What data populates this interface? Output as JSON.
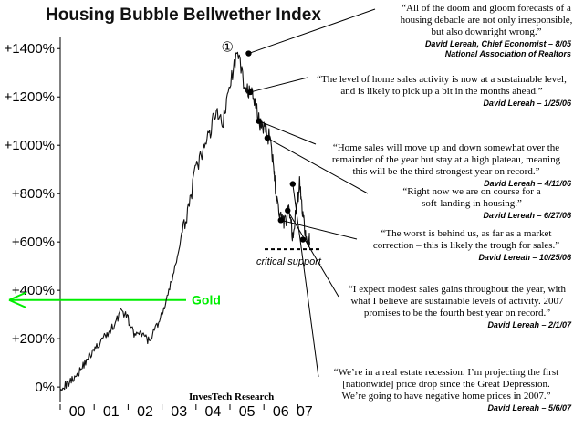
{
  "chart_data": {
    "type": "line",
    "title": "Housing Bubble Bellwether Index",
    "yunit_suffix": "%",
    "ylim": [
      -60,
      1450
    ],
    "yticks": [
      0,
      200,
      400,
      600,
      800,
      1000,
      1200,
      1400
    ],
    "ytick_labels": [
      "0%",
      "+200%",
      "+400%",
      "+600%",
      "+800%",
      "+1000%",
      "+1200%",
      "+1400%"
    ],
    "xlim": [
      2000.0,
      2007.5
    ],
    "xticks": [
      2000.5,
      2001.5,
      2002.5,
      2003.5,
      2004.5,
      2005.5,
      2006.5,
      2007.2
    ],
    "xtick_labels": [
      "00",
      "01",
      "02",
      "03",
      "04",
      "05",
      "06",
      "07"
    ],
    "series": [
      {
        "x": [
          2000.0,
          2000.2,
          2000.4,
          2000.6,
          2000.8,
          2001.0,
          2001.2,
          2001.4,
          2001.6,
          2001.8,
          2002.0,
          2002.2,
          2002.4,
          2002.6,
          2002.8,
          2003.0,
          2003.2,
          2003.4,
          2003.6,
          2003.8,
          2004.0,
          2004.2,
          2004.4,
          2004.6,
          2004.8,
          2005.0,
          2005.2,
          2005.4,
          2005.55,
          2005.7,
          2005.85,
          2006.0,
          2006.1,
          2006.2,
          2006.3,
          2006.35,
          2006.5,
          2006.6,
          2006.75,
          2006.85,
          2006.95,
          2007.05,
          2007.1,
          2007.2,
          2007.3,
          2007.35
        ],
        "y": [
          0,
          10,
          40,
          70,
          120,
          150,
          190,
          220,
          260,
          320,
          280,
          210,
          220,
          190,
          240,
          300,
          390,
          510,
          630,
          760,
          900,
          970,
          1050,
          1150,
          1100,
          1250,
          1380,
          1270,
          1220,
          1200,
          1100,
          1080,
          1040,
          1030,
          900,
          800,
          690,
          670,
          730,
          620,
          730,
          840,
          780,
          660,
          610,
          600
        ]
      }
    ],
    "markers": [
      {
        "x": 2005.55,
        "y": 1380
      },
      {
        "x": 2005.6,
        "y": 1220
      },
      {
        "x": 2005.85,
        "y": 1100
      },
      {
        "x": 2006.1,
        "y": 1030
      },
      {
        "x": 2006.5,
        "y": 690
      },
      {
        "x": 2006.7,
        "y": 730
      },
      {
        "x": 2006.85,
        "y": 840
      },
      {
        "x": 2007.15,
        "y": 610
      }
    ],
    "peak_label": "①",
    "gold": {
      "y": 360,
      "label": "Gold"
    },
    "support": {
      "y": 570,
      "x0": 2006.2,
      "x1": 2007.6,
      "label": "critical support"
    },
    "credit": "InvesTech Research",
    "quotes": [
      {
        "lines": [
          "“All of the doom and gloom forecasts of a",
          "housing debacle are not only irresponsible,",
          "but also downright wrong.”"
        ],
        "attr": [
          "David Lereah, Chief Economist – 8/05",
          "National Association of Realtors"
        ]
      },
      {
        "lines": [
          "“The level of home sales activity is now at a sustainable level,",
          "and is likely to pick up a bit in the months ahead.”"
        ],
        "attr": [
          "David Lereah – 1/25/06"
        ]
      },
      {
        "lines": [
          "“Home sales will move up and down somewhat over the",
          "remainder of the year but stay at a high plateau, meaning",
          "this will be the third strongest year on record.”"
        ],
        "attr": [
          "David Lereah – 4/11/06"
        ]
      },
      {
        "lines": [
          "“Right now we are on course for a",
          "soft-landing in housing.”"
        ],
        "attr": [
          "David Lereah – 6/27/06"
        ]
      },
      {
        "lines": [
          "“The worst is behind us, as far as a market",
          "correction – this is likely the trough for sales.”"
        ],
        "attr": [
          "David Lereah – 10/25/06"
        ]
      },
      {
        "lines": [
          "“I expect modest sales gains throughout the year, with",
          "what I believe are sustainable levels of activity.  2007",
          "promises to be the fourth best year on record.”"
        ],
        "attr": [
          "David Lereah – 2/1/07"
        ]
      },
      {
        "lines": [
          "“We’re in a real estate recession.  I’m projecting the first",
          "[nationwide] price drop since the Great Depression.",
          "We’re going to have negative home prices in 2007.”"
        ],
        "attr": [
          "David Lereah – 5/6/07"
        ]
      }
    ]
  }
}
